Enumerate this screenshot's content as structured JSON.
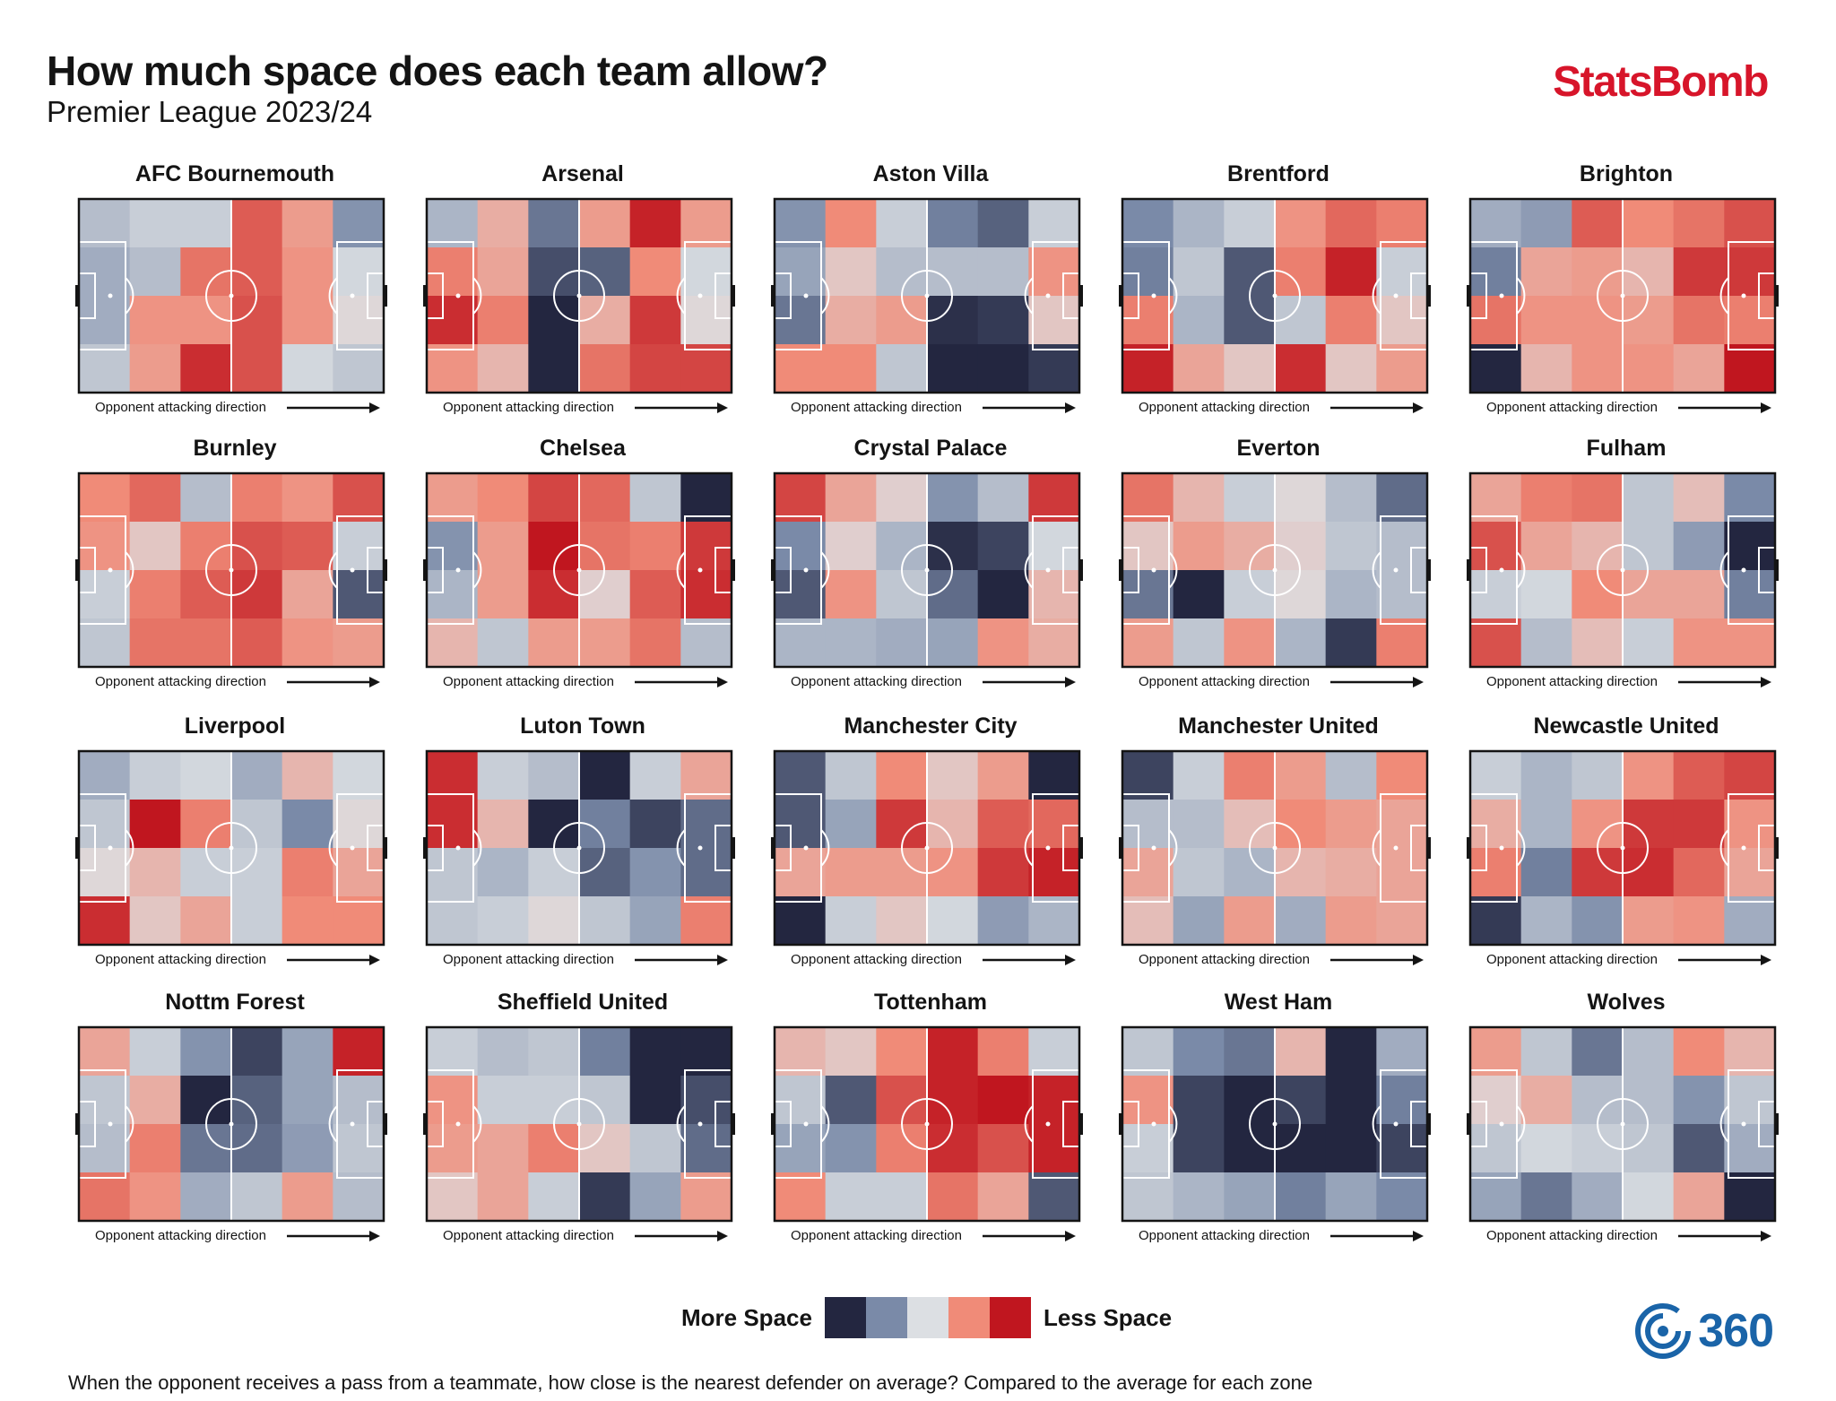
{
  "header": {
    "title": "How much space does each team allow?",
    "subtitle": "Premier League 2023/24",
    "brand": "StatsBomb"
  },
  "colors": {
    "scale": [
      "#232640",
      "#7a8aa8",
      "#dcdfe3",
      "#f08b78",
      "#c0161f"
    ],
    "brand": "#d7152a",
    "logo": "#1a64a8"
  },
  "legend": {
    "left_label": "More Space",
    "right_label": "Less Space"
  },
  "footnote": "When the opponent receives a pass from a teammate, how close is the nearest defender on average? Compared to the average for each zone",
  "logo": {
    "text": "360",
    "icon": "statsbomb-360-icon"
  },
  "chart_data": {
    "type": "heatmap",
    "title": "How much space does each team allow?",
    "subtitle": "Premier League 2023/24",
    "value_scale": "-1 = more space (navy) ... 0 = average (grey) ... +1 = less space (red)",
    "grid": {
      "rows": 4,
      "cols": 6
    },
    "direction_label": "Opponent attacking direction",
    "teams": [
      {
        "name": "AFC Bournemouth",
        "values": [
          [
            -0.2,
            -0.1,
            -0.1,
            0.7,
            0.4,
            -0.45
          ],
          [
            -0.3,
            -0.2,
            0.6,
            0.7,
            0.45,
            -0.05
          ],
          [
            -0.3,
            0.45,
            0.45,
            0.75,
            0.45,
            0.05
          ],
          [
            -0.15,
            0.4,
            0.9,
            0.75,
            -0.05,
            -0.15
          ]
        ]
      },
      {
        "name": "Arsenal",
        "values": [
          [
            -0.25,
            0.3,
            -0.6,
            0.4,
            0.95,
            0.4
          ],
          [
            0.55,
            0.35,
            -0.8,
            -0.7,
            0.5,
            -0.05
          ],
          [
            0.9,
            0.55,
            -1.0,
            0.3,
            0.85,
            0.05
          ],
          [
            0.45,
            0.25,
            -1.0,
            0.6,
            0.8,
            0.8
          ]
        ]
      },
      {
        "name": "Aston Villa",
        "values": [
          [
            -0.45,
            0.5,
            -0.1,
            -0.55,
            -0.7,
            -0.1
          ],
          [
            -0.35,
            0.15,
            -0.2,
            -0.2,
            -0.2,
            0.45
          ],
          [
            -0.6,
            0.3,
            0.4,
            -0.95,
            -0.9,
            0.15
          ],
          [
            0.5,
            0.5,
            -0.15,
            -1.0,
            -1.0,
            -0.9
          ]
        ]
      },
      {
        "name": "Brentford",
        "values": [
          [
            -0.5,
            -0.25,
            -0.1,
            0.45,
            0.65,
            0.55
          ],
          [
            -0.55,
            -0.15,
            -0.75,
            0.55,
            0.95,
            -0.1
          ],
          [
            0.55,
            -0.25,
            -0.75,
            -0.15,
            0.55,
            0.15
          ],
          [
            0.95,
            0.35,
            0.15,
            0.9,
            0.15,
            0.4
          ]
        ]
      },
      {
        "name": "Brighton",
        "values": [
          [
            -0.3,
            -0.4,
            0.7,
            0.5,
            0.6,
            0.75
          ],
          [
            -0.55,
            0.35,
            0.4,
            0.25,
            0.85,
            0.85
          ],
          [
            0.6,
            0.45,
            0.45,
            0.4,
            0.6,
            0.55
          ],
          [
            -1.0,
            0.25,
            0.45,
            0.45,
            0.35,
            1.0
          ]
        ]
      },
      {
        "name": "Burnley",
        "values": [
          [
            0.5,
            0.65,
            -0.2,
            0.55,
            0.45,
            0.75
          ],
          [
            0.45,
            0.15,
            0.55,
            0.75,
            0.7,
            -0.1
          ],
          [
            -0.1,
            0.55,
            0.7,
            0.85,
            0.35,
            -0.75
          ],
          [
            -0.15,
            0.6,
            0.6,
            0.7,
            0.45,
            0.4
          ]
        ]
      },
      {
        "name": "Chelsea",
        "values": [
          [
            0.4,
            0.5,
            0.8,
            0.65,
            -0.15,
            -1.0
          ],
          [
            -0.45,
            0.4,
            1.0,
            0.6,
            0.55,
            0.85
          ],
          [
            -0.25,
            0.4,
            0.9,
            0.1,
            0.7,
            0.9
          ],
          [
            0.25,
            -0.15,
            0.4,
            0.4,
            0.6,
            -0.2
          ]
        ]
      },
      {
        "name": "Crystal Palace",
        "values": [
          [
            0.8,
            0.35,
            0.1,
            -0.45,
            -0.2,
            0.85
          ],
          [
            -0.5,
            0.1,
            -0.25,
            -0.95,
            -0.85,
            -0.05
          ],
          [
            -0.75,
            0.45,
            -0.15,
            -0.65,
            -1.0,
            0.25
          ],
          [
            -0.25,
            -0.25,
            -0.3,
            -0.35,
            0.45,
            0.3
          ]
        ]
      },
      {
        "name": "Everton",
        "values": [
          [
            0.6,
            0.25,
            -0.1,
            0.05,
            -0.2,
            -0.65
          ],
          [
            0.15,
            0.4,
            0.3,
            0.1,
            -0.15,
            -0.2
          ],
          [
            -0.6,
            -1.0,
            -0.1,
            0.05,
            -0.25,
            -0.2
          ],
          [
            0.4,
            -0.15,
            0.45,
            -0.25,
            -0.9,
            0.55
          ]
        ]
      },
      {
        "name": "Fulham",
        "values": [
          [
            0.35,
            0.55,
            0.6,
            -0.15,
            0.2,
            -0.5
          ],
          [
            0.75,
            0.35,
            0.25,
            -0.15,
            -0.4,
            -1.0
          ],
          [
            -0.1,
            -0.05,
            0.5,
            0.35,
            0.35,
            -0.55
          ],
          [
            0.75,
            -0.2,
            0.2,
            -0.1,
            0.45,
            0.45
          ]
        ]
      },
      {
        "name": "Liverpool",
        "values": [
          [
            -0.3,
            -0.1,
            -0.05,
            -0.3,
            0.25,
            -0.05
          ],
          [
            -0.15,
            1.0,
            0.55,
            -0.15,
            -0.5,
            0.05
          ],
          [
            0.05,
            0.25,
            -0.1,
            -0.1,
            0.55,
            0.35
          ],
          [
            0.9,
            0.15,
            0.35,
            -0.1,
            0.5,
            0.5
          ]
        ]
      },
      {
        "name": "Luton Town",
        "values": [
          [
            0.9,
            -0.1,
            -0.2,
            -1.0,
            -0.1,
            0.35
          ],
          [
            0.9,
            0.25,
            -1.0,
            -0.55,
            -0.85,
            -0.65
          ],
          [
            -0.15,
            -0.25,
            -0.1,
            -0.7,
            -0.45,
            -0.65
          ],
          [
            -0.15,
            -0.1,
            0.05,
            -0.15,
            -0.35,
            0.55
          ]
        ]
      },
      {
        "name": "Manchester City",
        "values": [
          [
            -0.75,
            -0.15,
            0.5,
            0.15,
            0.4,
            -1.0
          ],
          [
            -0.75,
            -0.35,
            0.85,
            0.25,
            0.7,
            0.65
          ],
          [
            0.35,
            0.4,
            0.4,
            0.45,
            0.85,
            0.95
          ],
          [
            -1.0,
            -0.1,
            0.15,
            -0.05,
            -0.4,
            -0.25
          ]
        ]
      },
      {
        "name": "Manchester United",
        "values": [
          [
            -0.85,
            -0.1,
            0.55,
            0.4,
            -0.2,
            0.5
          ],
          [
            -0.2,
            -0.2,
            0.2,
            0.5,
            0.4,
            0.35
          ],
          [
            0.35,
            -0.15,
            -0.25,
            0.25,
            0.3,
            0.35
          ],
          [
            0.2,
            -0.35,
            0.4,
            -0.3,
            0.4,
            0.35
          ]
        ]
      },
      {
        "name": "Newcastle United",
        "values": [
          [
            -0.1,
            -0.25,
            -0.15,
            0.45,
            0.7,
            0.8
          ],
          [
            0.3,
            -0.25,
            0.45,
            0.85,
            0.85,
            0.45
          ],
          [
            0.55,
            -0.55,
            0.85,
            0.9,
            0.65,
            0.35
          ],
          [
            -0.9,
            -0.25,
            -0.45,
            0.4,
            0.45,
            -0.3
          ]
        ]
      },
      {
        "name": "Nottm Forest",
        "values": [
          [
            0.35,
            -0.1,
            -0.45,
            -0.85,
            -0.35,
            0.95
          ],
          [
            -0.15,
            0.3,
            -1.0,
            -0.7,
            -0.35,
            -0.2
          ],
          [
            -0.2,
            0.55,
            -0.6,
            -0.65,
            -0.4,
            -0.15
          ],
          [
            0.6,
            0.45,
            -0.3,
            -0.15,
            0.4,
            -0.2
          ]
        ]
      },
      {
        "name": "Sheffield United",
        "values": [
          [
            -0.1,
            -0.2,
            -0.15,
            -0.55,
            -1.0,
            -1.0
          ],
          [
            0.45,
            -0.1,
            -0.1,
            -0.15,
            -1.0,
            -0.8
          ],
          [
            0.4,
            0.35,
            0.55,
            0.15,
            -0.15,
            -0.65
          ],
          [
            0.15,
            0.35,
            -0.1,
            -0.9,
            -0.35,
            0.4
          ]
        ]
      },
      {
        "name": "Tottenham",
        "values": [
          [
            0.25,
            0.15,
            0.5,
            0.95,
            0.55,
            -0.1
          ],
          [
            -0.15,
            -0.75,
            0.75,
            0.95,
            1.0,
            0.95
          ],
          [
            -0.35,
            -0.45,
            0.55,
            0.9,
            0.75,
            0.95
          ],
          [
            0.5,
            -0.1,
            -0.1,
            0.6,
            0.35,
            -0.75
          ]
        ]
      },
      {
        "name": "West Ham",
        "values": [
          [
            -0.15,
            -0.5,
            -0.6,
            0.25,
            -1.0,
            -0.3
          ],
          [
            0.45,
            -0.85,
            -1.0,
            -0.85,
            -1.0,
            -0.55
          ],
          [
            -0.1,
            -0.85,
            -1.0,
            -1.0,
            -1.0,
            -0.85
          ],
          [
            -0.15,
            -0.25,
            -0.35,
            -0.55,
            -0.35,
            -0.5
          ]
        ]
      },
      {
        "name": "Wolves",
        "values": [
          [
            0.4,
            -0.15,
            -0.6,
            -0.2,
            0.5,
            0.25
          ],
          [
            0.1,
            0.3,
            -0.2,
            -0.2,
            -0.45,
            -0.15
          ],
          [
            -0.15,
            -0.05,
            -0.1,
            -0.15,
            -0.75,
            -0.3
          ],
          [
            -0.35,
            -0.6,
            -0.3,
            -0.05,
            0.35,
            -1.0
          ]
        ]
      }
    ]
  }
}
